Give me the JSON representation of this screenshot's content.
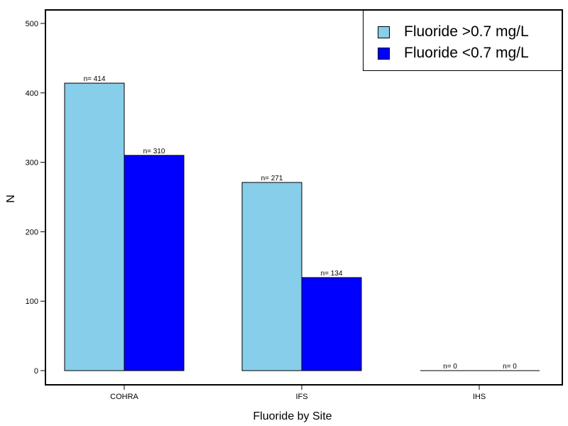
{
  "chart_data": {
    "type": "bar",
    "title": "",
    "xlabel": "Fluoride by Site",
    "ylabel": "N",
    "ylim": [
      0,
      520
    ],
    "yticks": [
      0,
      100,
      200,
      300,
      400,
      500
    ],
    "categories": [
      "COHRA",
      "IFS",
      "IHS"
    ],
    "series": [
      {
        "name": "Fluoride >0.7 mg/L",
        "color": "#87ceeb",
        "values": [
          414,
          271,
          0
        ],
        "labels": [
          "n= 414",
          "n= 271",
          "n= 0"
        ]
      },
      {
        "name": "Fluoride <0.7 mg/L",
        "color": "#0000ff",
        "values": [
          310,
          134,
          0
        ],
        "labels": [
          "n= 310",
          "n= 134",
          "n= 0"
        ]
      }
    ],
    "legend": "top-right",
    "grid": false
  }
}
